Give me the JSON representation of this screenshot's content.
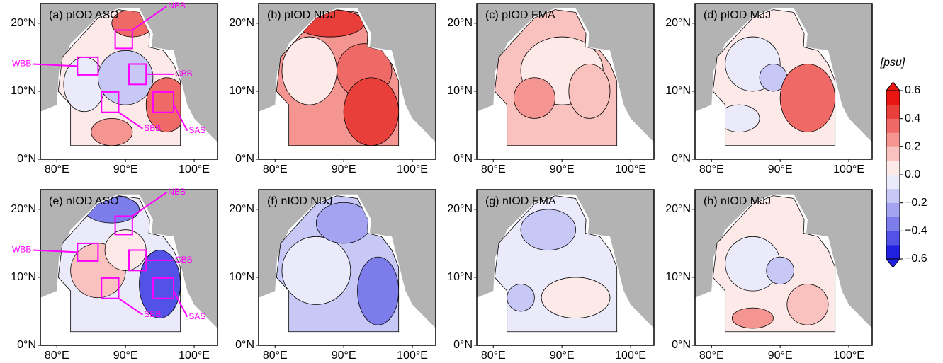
{
  "panels": [
    {
      "title": "(a) pIOD ASO"
    },
    {
      "title": "(b) pIOD NDJ"
    },
    {
      "title": "(c) pIOD FMA"
    },
    {
      "title": "(d) pIOD MJJ"
    },
    {
      "title": "(e) nIOD ASO"
    },
    {
      "title": "(f) nIOD NDJ"
    },
    {
      "title": "(g) nIOD FMA"
    },
    {
      "title": "(h) nIOD MJJ"
    }
  ],
  "axes": {
    "xlim": [
      77.6,
      103.4
    ],
    "ylim": [
      0,
      22.9
    ],
    "xticks": [
      {
        "value": 80,
        "label": "80°E"
      },
      {
        "value": 90,
        "label": "90°E"
      },
      {
        "value": 100,
        "label": "100°E"
      }
    ],
    "yticks": [
      {
        "value": 0,
        "label": "0°N"
      },
      {
        "value": 10,
        "label": "10°N"
      },
      {
        "value": 20,
        "label": "20°N"
      }
    ]
  },
  "regions": [
    "NBB",
    "WBB",
    "CBB",
    "SBB",
    "SAS"
  ],
  "colorbar": {
    "label": "[psu]",
    "lim": [
      -0.6,
      0.6
    ],
    "ticks": [
      0.6,
      0.4,
      0.2,
      {
        "value": 0,
        "label": "0.0"
      },
      {
        "value": -0.2,
        "label": "−0.2"
      },
      {
        "value": -0.4,
        "label": "−0.4"
      },
      {
        "value": -0.6,
        "label": "−0.6"
      }
    ],
    "colors": [
      "#2020e0",
      "#5252e6",
      "#7c7ceb",
      "#a3a3f1",
      "#c8c8f6",
      "#eaeafb",
      "#fdeae8",
      "#f9c2be",
      "#f49592",
      "#ef6a66",
      "#e93f3b",
      "#e81610"
    ]
  }
}
